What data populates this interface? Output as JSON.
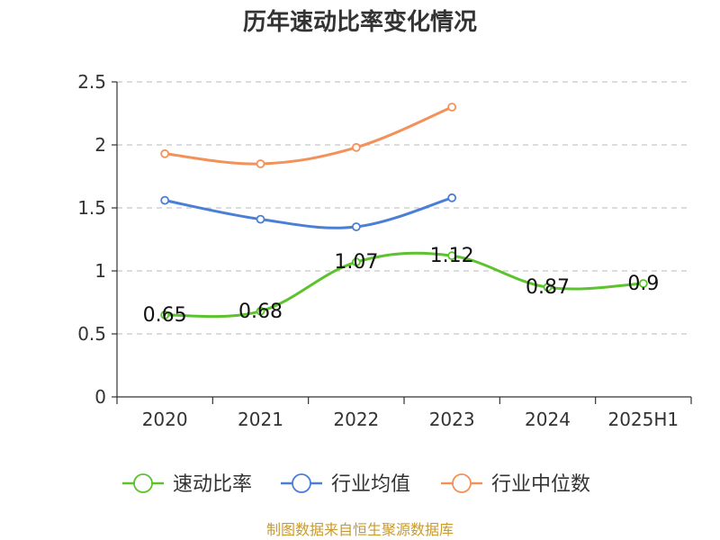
{
  "chart_data": {
    "type": "line",
    "title": "历年速动比率变化情况",
    "categories": [
      "2020",
      "2021",
      "2022",
      "2023",
      "2024",
      "2025H1"
    ],
    "ylim": [
      0,
      2.5
    ],
    "yticks": [
      "0",
      "0.5",
      "1",
      "1.5",
      "2",
      "2.5"
    ],
    "grid": true,
    "legend_position": "bottom",
    "series": [
      {
        "name": "速动比率",
        "color": "#5cc22d",
        "values": [
          0.65,
          0.68,
          1.07,
          1.12,
          0.87,
          0.9
        ],
        "labels": [
          "0.65",
          "0.68",
          "1.07",
          "1.12",
          "0.87",
          "0.9"
        ]
      },
      {
        "name": "行业均值",
        "color": "#4a7fd6",
        "values": [
          1.56,
          1.41,
          1.35,
          1.58,
          null,
          null
        ]
      },
      {
        "name": "行业中位数",
        "color": "#f2925a",
        "values": [
          1.93,
          1.85,
          1.98,
          2.3,
          null,
          null
        ]
      }
    ]
  },
  "footer": {
    "source": "制图数据来自恒生聚源数据库"
  }
}
